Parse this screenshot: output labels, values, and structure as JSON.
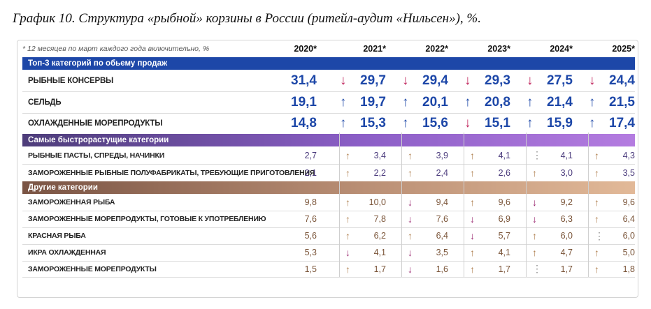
{
  "title": "График 10. Структура «рыбной» корзины в России (ритейл-аудит «Нильсен»), %.",
  "chart_data": {
    "type": "table",
    "note": "* 12 месяцев по март каждого года включительно, %",
    "years": [
      "2020*",
      "2021*",
      "2022*",
      "2023*",
      "2024*",
      "2025*"
    ],
    "groups": [
      {
        "name": "Топ-3 категорий по обьему продаж",
        "style": "big",
        "band": "b1",
        "value_color": "#1d47a8",
        "rows": [
          {
            "label": "РЫБНЫЕ КОНСЕРВЫ",
            "values": [
              "31,4",
              "29,7",
              "29,4",
              "29,3",
              "27,5",
              "24,4"
            ],
            "trend": [
              "",
              "down",
              "down",
              "down",
              "down",
              "down"
            ]
          },
          {
            "label": "СЕЛЬДЬ",
            "values": [
              "19,1",
              "19,7",
              "20,1",
              "20,8",
              "21,4",
              "21,5"
            ],
            "trend": [
              "",
              "up",
              "up",
              "up",
              "up",
              "up"
            ]
          },
          {
            "label": "ОХЛАЖДЕННЫЕ МОРЕПРОДУКТЫ",
            "values": [
              "14,8",
              "15,3",
              "15,6",
              "15,1",
              "15,9",
              "17,4"
            ],
            "trend": [
              "",
              "up",
              "up",
              "down",
              "up",
              "up"
            ]
          }
        ]
      },
      {
        "name": "Самые быстрорастущие категории",
        "style": "small",
        "band": "b2",
        "value_color": "#4a3a7c",
        "rows": [
          {
            "label": "РЫБНЫЕ ПАСТЫ, СПРЕДЫ, НАЧИНКИ",
            "values": [
              "2,7",
              "3,4",
              "3,9",
              "4,1",
              "4,1",
              "4,3"
            ],
            "trend": [
              "",
              "up",
              "up",
              "up",
              "flat",
              "up"
            ]
          },
          {
            "label": "ЗАМОРОЖЕННЫЕ РЫБНЫЕ ПОЛУФАБРИКАТЫ, ТРЕБУЮЩИЕ ПРИГОТОВЛЕНИЯ",
            "values": [
              "2,1",
              "2,2",
              "2,4",
              "2,6",
              "3,0",
              "3,5"
            ],
            "trend": [
              "",
              "up",
              "up",
              "up",
              "up",
              "up"
            ]
          }
        ]
      },
      {
        "name": "Другие категории",
        "style": "small",
        "band": "b3",
        "value_color": "#7a5438",
        "rows": [
          {
            "label": "ЗАМОРОЖЕННАЯ РЫБА",
            "values": [
              "9,8",
              "10,0",
              "9,4",
              "9,6",
              "9,2",
              "9,6"
            ],
            "trend": [
              "",
              "up",
              "down",
              "up",
              "down",
              "up"
            ]
          },
          {
            "label": "ЗАМОРОЖЕННЫЕ МОРЕПРОДУКТЫ, ГОТОВЫЕ К УПОТРЕБЛЕНИЮ",
            "values": [
              "7,6",
              "7,8",
              "7,6",
              "6,9",
              "6,3",
              "6,4"
            ],
            "trend": [
              "",
              "up",
              "down",
              "down",
              "down",
              "up"
            ]
          },
          {
            "label": "КРАСНАЯ РЫБА",
            "values": [
              "5,6",
              "6,2",
              "6,4",
              "5,7",
              "6,0",
              "6,0"
            ],
            "trend": [
              "",
              "up",
              "up",
              "down",
              "up",
              "flat"
            ]
          },
          {
            "label": "ИКРА ОХЛАЖДЕННАЯ",
            "values": [
              "5,3",
              "4,1",
              "3,5",
              "4,1",
              "4,7",
              "5,0"
            ],
            "trend": [
              "",
              "down",
              "down",
              "up",
              "up",
              "up"
            ]
          },
          {
            "label": "ЗАМОРОЖЕННЫЕ МОРЕПРОДУКТЫ",
            "values": [
              "1,5",
              "1,7",
              "1,6",
              "1,7",
              "1,7",
              "1,8"
            ],
            "trend": [
              "",
              "up",
              "down",
              "up",
              "flat",
              "up"
            ]
          }
        ]
      }
    ]
  },
  "colors": {
    "big_up": "#1d47a8",
    "big_down": "#c0245c",
    "small_up": "#b08050",
    "small_down": "#9b2a72",
    "flat": "#8a8a8a"
  },
  "icons": {
    "up": "arrow-up-icon",
    "down": "arrow-down-icon",
    "flat": "dotted-line-icon"
  }
}
